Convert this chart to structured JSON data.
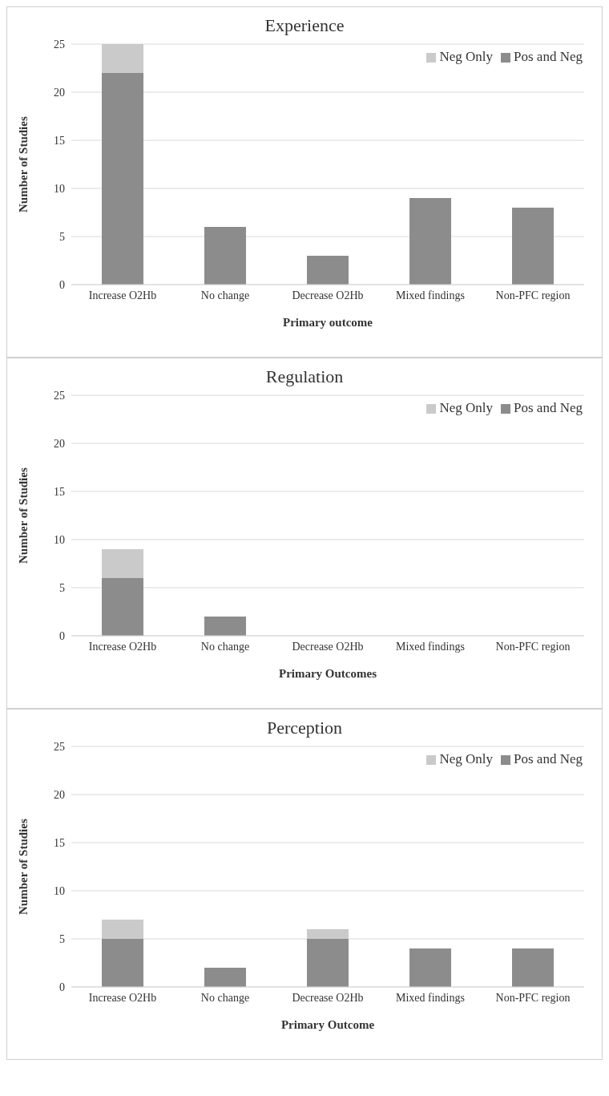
{
  "chart_data": [
    {
      "type": "bar",
      "title": "Experience",
      "xlabel": "Primary outcome",
      "ylabel": "Number of Studies",
      "categories": [
        "Increase O2Hb",
        "No change",
        "Decrease O2Hb",
        "Mixed findings",
        "Non-PFC region"
      ],
      "stacked": true,
      "series": [
        {
          "name": "Pos and Neg",
          "color": "#8c8c8c",
          "values": [
            22,
            6,
            3,
            9,
            8
          ]
        },
        {
          "name": "Neg Only",
          "color": "#cacaca",
          "values": [
            3,
            0,
            0,
            0,
            0
          ]
        }
      ],
      "ylim": [
        0,
        25
      ],
      "yticks": [
        0,
        5,
        10,
        15,
        20,
        25
      ],
      "grid": "y",
      "legend": "top right"
    },
    {
      "type": "bar",
      "title": "Regulation",
      "xlabel": "Primary Outcomes",
      "ylabel": "Number of Studies",
      "categories": [
        "Increase O2Hb",
        "No change",
        "Decrease O2Hb",
        "Mixed findings",
        "Non-PFC region"
      ],
      "stacked": true,
      "series": [
        {
          "name": "Pos and Neg",
          "color": "#8c8c8c",
          "values": [
            6,
            2,
            0,
            0,
            0
          ]
        },
        {
          "name": "Neg Only",
          "color": "#cacaca",
          "values": [
            3,
            0,
            0,
            0,
            0
          ]
        }
      ],
      "ylim": [
        0,
        25
      ],
      "yticks": [
        0,
        5,
        10,
        15,
        20,
        25
      ],
      "grid": "y",
      "legend": "top right"
    },
    {
      "type": "bar",
      "title": "Perception",
      "xlabel": "Primary Outcome",
      "ylabel": "Number of Studies",
      "categories": [
        "Increase O2Hb",
        "No change",
        "Decrease O2Hb",
        "Mixed findings",
        "Non-PFC region"
      ],
      "stacked": true,
      "series": [
        {
          "name": "Pos and Neg",
          "color": "#8c8c8c",
          "values": [
            5,
            2,
            5,
            4,
            4
          ]
        },
        {
          "name": "Neg Only",
          "color": "#cacaca",
          "values": [
            2,
            0,
            1,
            0,
            0
          ]
        }
      ],
      "ylim": [
        0,
        25
      ],
      "yticks": [
        0,
        5,
        10,
        15,
        20,
        25
      ],
      "grid": "y",
      "legend": "top right"
    }
  ]
}
